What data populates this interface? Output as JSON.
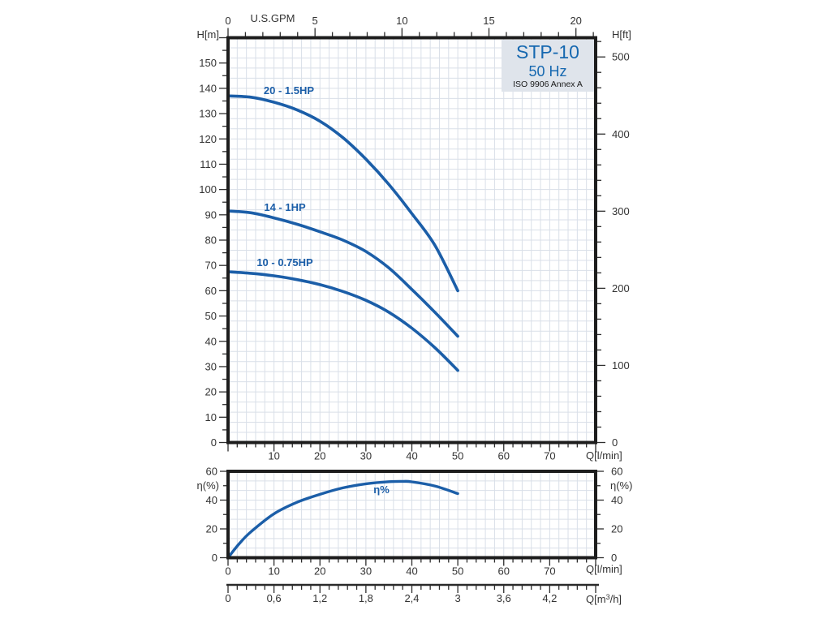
{
  "title_box": {
    "model": "STP-10",
    "frequency": "50 Hz",
    "standard": "ISO 9906 Annex A"
  },
  "colors": {
    "curve": "#1b5ea8",
    "title_blue": "#1668b0",
    "box_bg": "#dfe4eb",
    "grid": "#d9dfe8",
    "border": "#1d1d1d",
    "text": "#333333"
  },
  "chart_data": [
    {
      "type": "line",
      "title": "Pump head vs flow",
      "top_label": "U.S.GPM",
      "ylabel": "H[m]",
      "ylabel_right": "H[ft]",
      "xlabel": "Q[l/min]",
      "xlim": [
        0,
        80
      ],
      "ylim": [
        0,
        160
      ],
      "x_tick_labels": [
        10,
        20,
        30,
        40,
        50,
        60,
        70
      ],
      "x_minor_step": 2,
      "y_tick_labels": [
        0,
        10,
        20,
        30,
        40,
        50,
        60,
        70,
        80,
        90,
        100,
        110,
        120,
        130,
        140,
        150
      ],
      "y_minor_step": 5,
      "right_axis": {
        "unit": "ft",
        "tick_labels": [
          0,
          100,
          200,
          300,
          400,
          500
        ],
        "minor_step": 20,
        "max": 520,
        "ft_to_m": 0.3048
      },
      "top_axis": {
        "unit": "U.S.GPM",
        "tick_labels": [
          0,
          5,
          10,
          15,
          20
        ],
        "minor_step": 1,
        "max": 21,
        "gpm_to_lmin": 3.7854
      },
      "grid": true,
      "legend_position": "on-curve",
      "series": [
        {
          "name": "20 - 1.5HP",
          "points": [
            [
              0,
              137
            ],
            [
              5,
              136.5
            ],
            [
              10,
              134.5
            ],
            [
              15,
              131.5
            ],
            [
              20,
              127
            ],
            [
              25,
              120.5
            ],
            [
              30,
              112
            ],
            [
              35,
              102
            ],
            [
              40,
              90.5
            ],
            [
              45,
              78
            ],
            [
              50,
              60
            ]
          ]
        },
        {
          "name": "14 - 1HP",
          "points": [
            [
              0,
              91.5
            ],
            [
              5,
              90.8
            ],
            [
              10,
              88.8
            ],
            [
              15,
              86.3
            ],
            [
              20,
              83.3
            ],
            [
              25,
              80
            ],
            [
              30,
              75.5
            ],
            [
              35,
              69
            ],
            [
              40,
              60.5
            ],
            [
              45,
              51.5
            ],
            [
              50,
              42
            ]
          ]
        },
        {
          "name": "10 - 0.75HP",
          "points": [
            [
              0,
              67.5
            ],
            [
              5,
              66.9
            ],
            [
              10,
              65.9
            ],
            [
              15,
              64.4
            ],
            [
              20,
              62.4
            ],
            [
              25,
              59.7
            ],
            [
              30,
              56.2
            ],
            [
              35,
              51.5
            ],
            [
              40,
              45.2
            ],
            [
              45,
              37.5
            ],
            [
              50,
              28.5
            ]
          ]
        }
      ]
    },
    {
      "type": "line",
      "title": "Efficiency vs flow",
      "ylabel": "η(%)",
      "ylabel_right": "η(%)",
      "xlabel": "Q[l/min]",
      "xlim": [
        0,
        80
      ],
      "ylim": [
        0,
        60
      ],
      "x_tick_labels": [
        0,
        10,
        20,
        30,
        40,
        50,
        60,
        70
      ],
      "x_minor_step": 2,
      "y_tick_labels": [
        0,
        20,
        40,
        60
      ],
      "y_minor_step": 10,
      "grid": true,
      "series": [
        {
          "name": "η%",
          "points": [
            [
              0,
              0
            ],
            [
              2.5,
              10
            ],
            [
              5,
              18
            ],
            [
              10,
              30.5
            ],
            [
              15,
              38.5
            ],
            [
              20,
              44
            ],
            [
              25,
              48.5
            ],
            [
              30,
              51.3
            ],
            [
              35,
              52.8
            ],
            [
              38,
              53
            ],
            [
              40,
              52.7
            ],
            [
              45,
              49.8
            ],
            [
              50,
              44.5
            ]
          ]
        }
      ]
    }
  ],
  "m3h_axis": {
    "label_pre": "Q[m",
    "label_sup": "3",
    "label_post": "/h]",
    "tick_labels": [
      "0",
      "0,6",
      "1,2",
      "1,8",
      "2,4",
      "3",
      "3,6",
      "4,2"
    ],
    "tick_positions_lmin": [
      0,
      10,
      20,
      30,
      40,
      50,
      60,
      70
    ],
    "minor_step_lmin": 2
  }
}
